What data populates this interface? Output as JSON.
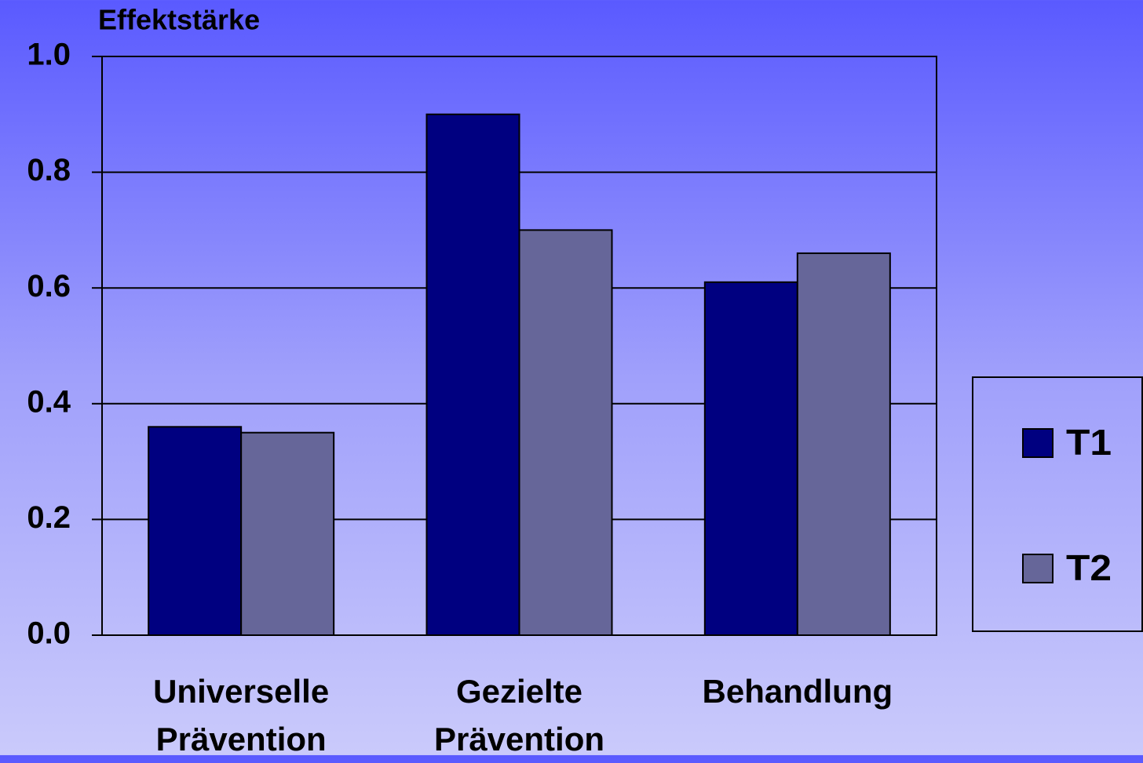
{
  "chart_data": {
    "type": "bar",
    "y_axis_label": "Effektstärke",
    "categories": [
      "Universelle Prävention",
      "Gezielte Prävention",
      "Behandlung"
    ],
    "series": [
      {
        "name": "T1",
        "color": "#000080",
        "values": [
          0.36,
          0.9,
          0.61
        ]
      },
      {
        "name": "T2",
        "color": "#666699",
        "values": [
          0.35,
          0.7,
          0.66
        ]
      }
    ],
    "ylim": [
      0,
      1.0
    ],
    "yticks": [
      {
        "value": 0,
        "label": "0.0"
      },
      {
        "value": 0.2,
        "label": "0.2"
      },
      {
        "value": 0.4,
        "label": "0.4"
      },
      {
        "value": 0.6,
        "label": "0.6"
      },
      {
        "value": 0.8,
        "label": "0.8"
      },
      {
        "value": 1.0,
        "label": "1.0"
      }
    ],
    "grid": true,
    "legend": "right"
  }
}
